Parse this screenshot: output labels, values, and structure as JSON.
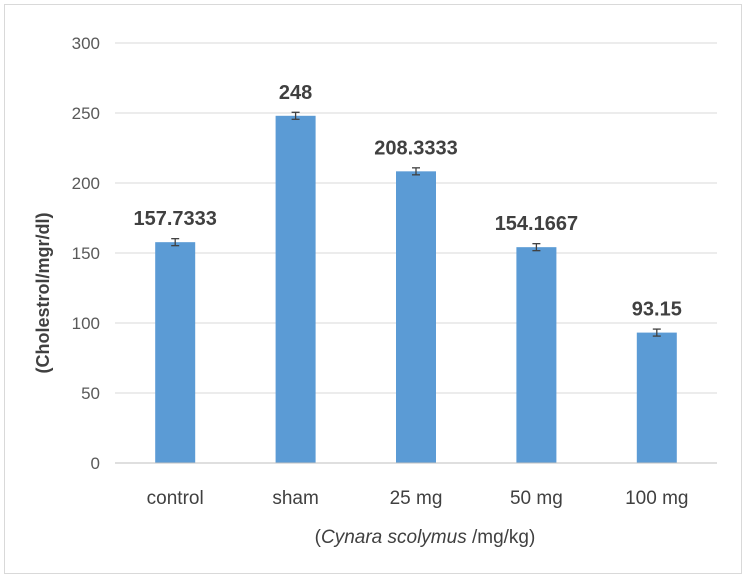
{
  "chart_data": {
    "type": "bar",
    "categories": [
      "control",
      "sham",
      "25 mg",
      "50 mg",
      "100 mg"
    ],
    "values": [
      157.7333,
      248,
      208.3333,
      154.1667,
      93.15
    ],
    "data_labels": [
      "157.7333",
      "248",
      "208.3333",
      "154.1667",
      "93.15"
    ],
    "error": [
      2.5,
      2.5,
      2.5,
      2.5,
      2.5
    ],
    "ylabel": "(Cholestrol/mgr/dl)",
    "xlabel": {
      "open": "(",
      "italic": "Cynara scolymus",
      "rest": " /mg/kg)"
    },
    "ylim": [
      0,
      300
    ],
    "yticks": [
      "0",
      "50",
      "100",
      "150",
      "200",
      "250",
      "300"
    ],
    "grid": true,
    "bar_color": "#5B9BD5"
  }
}
